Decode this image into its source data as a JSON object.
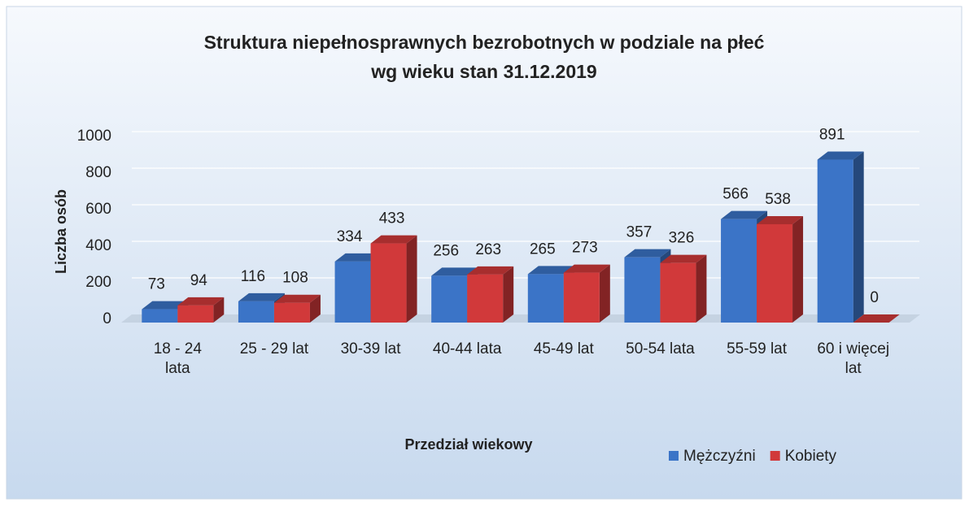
{
  "chart_data": {
    "type": "bar",
    "title": [
      "Struktura niepełnosprawnych bezrobotnych w podziale na płeć",
      "wg wieku stan 31.12.2019"
    ],
    "x_label": "Przedział wiekowy",
    "y_label": "Liczba osób",
    "categories": [
      "18 - 24 lata",
      "25 - 29 lat",
      "30-39 lat",
      "40-44 lata",
      "45-49 lat",
      "50-54 lata",
      "55-59 lat",
      "60 i więcej lat"
    ],
    "series": [
      {
        "name": "Mężczyźni",
        "color": "#3b74c7",
        "values": [
          73,
          116,
          334,
          256,
          265,
          357,
          566,
          891
        ]
      },
      {
        "name": "Kobiety",
        "color": "#d1393a",
        "values": [
          94,
          108,
          433,
          263,
          273,
          326,
          538,
          0
        ]
      }
    ],
    "ylim": [
      0,
      1000
    ],
    "yticks": [
      0,
      200,
      400,
      600,
      800,
      1000
    ],
    "grid": true,
    "legend": "bottom-right"
  }
}
